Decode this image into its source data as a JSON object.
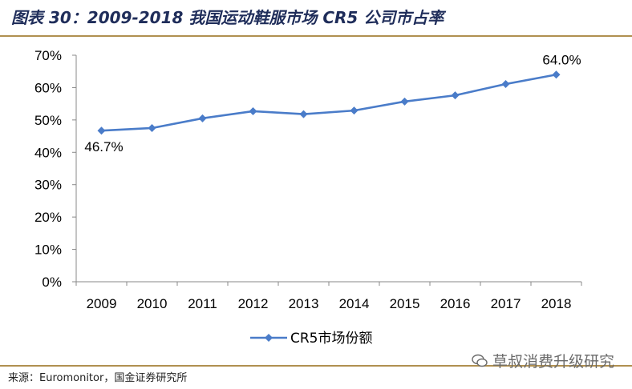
{
  "header": {
    "title": "图表 30：2009-2018 我国运动鞋服市场 CR5 公司市占率"
  },
  "footer": {
    "source": "来源：Euromonitor，国金证券研究所",
    "watermark": "草叔消费升级研究"
  },
  "colors": {
    "series": "#4a7cc9",
    "rule": "#b09050",
    "title": "#1f2d5a"
  },
  "chart_data": {
    "type": "line",
    "title": "",
    "xlabel": "",
    "ylabel": "",
    "categories": [
      "2009",
      "2010",
      "2011",
      "2012",
      "2013",
      "2014",
      "2015",
      "2016",
      "2017",
      "2018"
    ],
    "series": [
      {
        "name": "CR5市场份额",
        "values": [
          46.7,
          47.5,
          50.5,
          52.7,
          51.8,
          52.9,
          55.7,
          57.6,
          61.1,
          64.0
        ],
        "marker": "diamond"
      }
    ],
    "ylim": [
      0,
      70
    ],
    "yticks": [
      "0%",
      "10%",
      "20%",
      "30%",
      "40%",
      "50%",
      "60%",
      "70%"
    ],
    "data_labels": [
      {
        "index": 0,
        "text": "46.7%"
      },
      {
        "index": 9,
        "text": "64.0%"
      }
    ],
    "legend": "bottom-center",
    "grid": false
  }
}
